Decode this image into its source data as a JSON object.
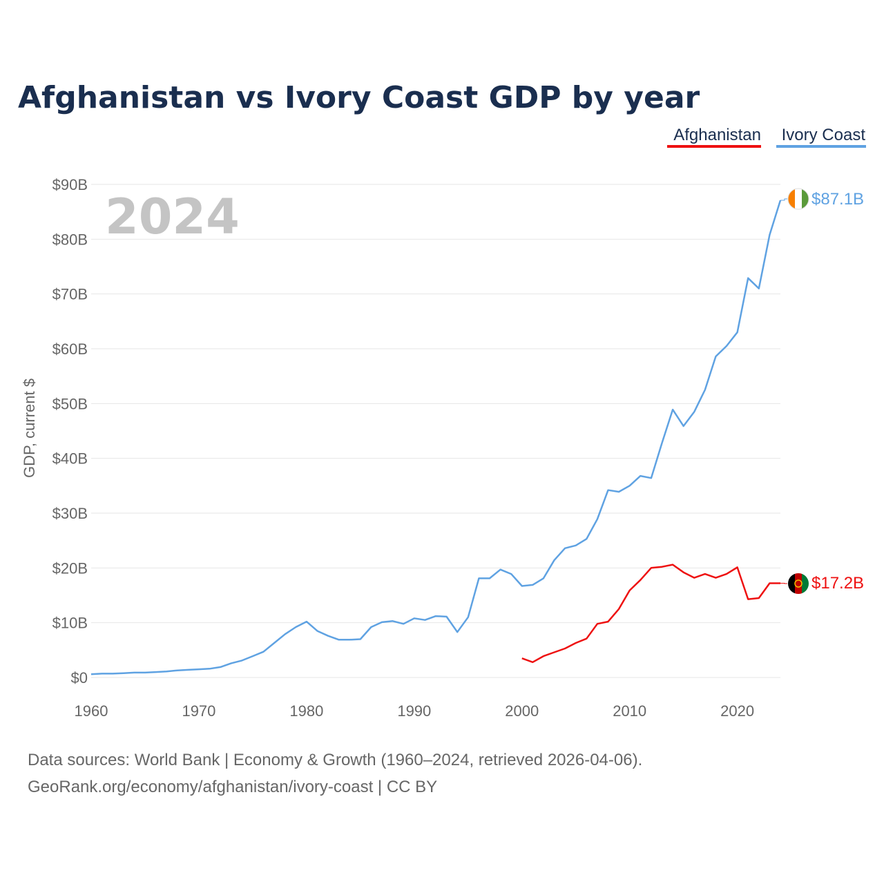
{
  "chart_data": {
    "type": "line",
    "title": "Afghanistan vs Ivory Coast GDP by year",
    "ylabel": "GDP, current $",
    "xlabel": "",
    "current_year": "2024",
    "xlim": [
      1960,
      2024
    ],
    "ylim": [
      0,
      90
    ],
    "y_ticks": [
      0,
      10,
      20,
      30,
      40,
      50,
      60,
      70,
      80,
      90
    ],
    "y_tick_labels": [
      "$0",
      "$10B",
      "$20B",
      "$30B",
      "$40B",
      "$50B",
      "$60B",
      "$70B",
      "$80B",
      "$90B"
    ],
    "x_ticks": [
      1960,
      1970,
      1980,
      1990,
      2000,
      2010,
      2020
    ],
    "x_tick_labels": [
      "1960",
      "1970",
      "1980",
      "1990",
      "2000",
      "2010",
      "2020"
    ],
    "legend": [
      "Afghanistan",
      "Ivory Coast"
    ],
    "series": [
      {
        "name": "Afghanistan",
        "color": "#ee1111",
        "end_label": "$17.2B",
        "flag": "afghanistan-flag",
        "x": [
          2000,
          2001,
          2002,
          2003,
          2004,
          2005,
          2006,
          2007,
          2008,
          2009,
          2010,
          2011,
          2012,
          2013,
          2014,
          2015,
          2016,
          2017,
          2018,
          2019,
          2020,
          2021,
          2022,
          2023,
          2024
        ],
        "values": [
          3.5,
          2.8,
          3.9,
          4.6,
          5.3,
          6.3,
          7.1,
          9.8,
          10.2,
          12.5,
          15.9,
          17.8,
          20.0,
          20.2,
          20.6,
          19.2,
          18.2,
          18.9,
          18.2,
          18.9,
          20.1,
          14.3,
          14.5,
          17.2,
          17.2
        ]
      },
      {
        "name": "Ivory Coast",
        "color": "#5fa2e2",
        "end_label": "$87.1B",
        "flag": "ivory-coast-flag",
        "x": [
          1960,
          1961,
          1962,
          1963,
          1964,
          1965,
          1966,
          1967,
          1968,
          1969,
          1970,
          1971,
          1972,
          1973,
          1974,
          1975,
          1976,
          1977,
          1978,
          1979,
          1980,
          1981,
          1982,
          1983,
          1984,
          1985,
          1986,
          1987,
          1988,
          1989,
          1990,
          1991,
          1992,
          1993,
          1994,
          1995,
          1996,
          1997,
          1998,
          1999,
          2000,
          2001,
          2002,
          2003,
          2004,
          2005,
          2006,
          2007,
          2008,
          2009,
          2010,
          2011,
          2012,
          2013,
          2014,
          2015,
          2016,
          2017,
          2018,
          2019,
          2020,
          2021,
          2022,
          2023,
          2024
        ],
        "values": [
          0.6,
          0.7,
          0.7,
          0.8,
          0.9,
          0.9,
          1.0,
          1.1,
          1.3,
          1.4,
          1.5,
          1.6,
          1.9,
          2.6,
          3.1,
          3.9,
          4.7,
          6.3,
          7.9,
          9.2,
          10.2,
          8.5,
          7.6,
          6.9,
          6.9,
          7.0,
          9.2,
          10.1,
          10.3,
          9.8,
          10.8,
          10.5,
          11.2,
          11.1,
          8.3,
          11.0,
          18.1,
          18.1,
          19.7,
          18.9,
          16.7,
          16.9,
          18.1,
          21.4,
          23.6,
          24.1,
          25.3,
          28.9,
          34.2,
          33.9,
          35.0,
          36.8,
          36.4,
          42.8,
          48.9,
          45.9,
          48.5,
          52.5,
          58.6,
          60.5,
          63.0,
          72.9,
          71.0,
          80.8,
          87.1
        ]
      }
    ]
  },
  "footer": {
    "source_line": "Data sources: World Bank | Economy & Growth (1960–2024, retrieved 2026-04-06).",
    "url_line": "GeoRank.org/economy/afghanistan/ivory-coast | CC BY"
  }
}
